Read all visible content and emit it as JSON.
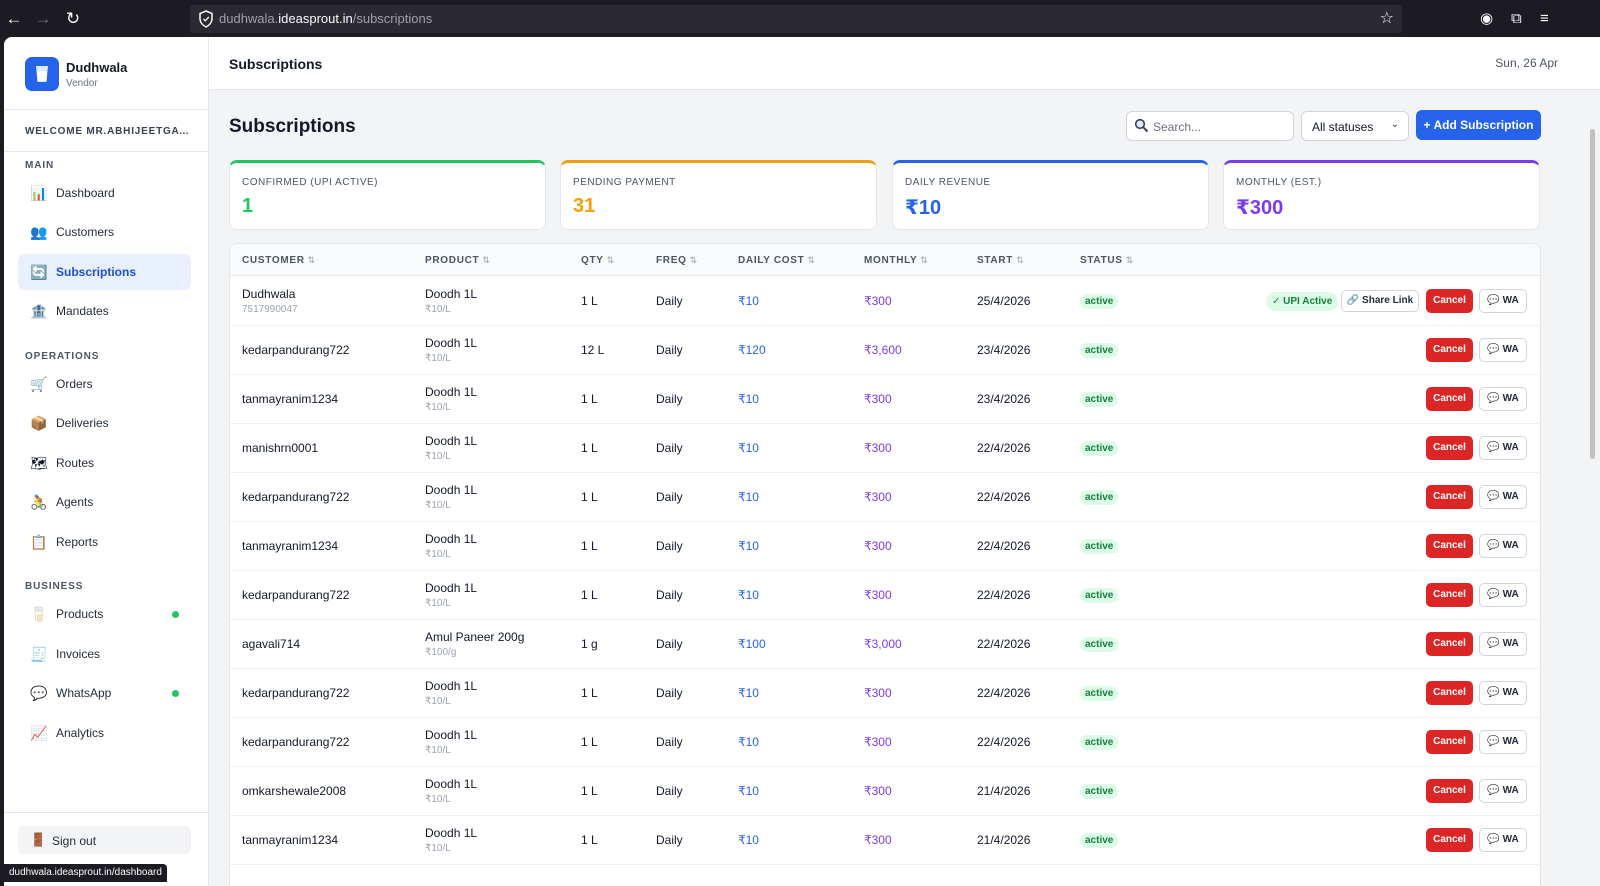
{
  "browser": {
    "url_host": "dudhwala.",
    "url_domain": "ideasprout.in",
    "url_path": "/subscriptions",
    "status_url": "dudhwala.ideasprout.in/dashboard"
  },
  "sidebar": {
    "brand": "Dudhwala",
    "role": "Vendor",
    "welcome": "WELCOME MR.ABHIJEETGAVANDE",
    "sections": {
      "main": "MAIN",
      "operations": "OPERATIONS",
      "business": "BUSINESS"
    },
    "items": {
      "dashboard": "Dashboard",
      "customers": "Customers",
      "subscriptions": "Subscriptions",
      "mandates": "Mandates",
      "orders": "Orders",
      "deliveries": "Deliveries",
      "routes": "Routes",
      "agents": "Agents",
      "reports": "Reports",
      "products": "Products",
      "invoices": "Invoices",
      "whatsapp": "WhatsApp",
      "analytics": "Analytics"
    },
    "signout": "Sign out"
  },
  "topbar": {
    "title": "Subscriptions",
    "date": "Sun, 26 Apr"
  },
  "page": {
    "title": "Subscriptions",
    "search_placeholder": "Search...",
    "status_filter": "All statuses",
    "add_button": "+ Add Subscription"
  },
  "stats": [
    {
      "label": "CONFIRMED (UPI ACTIVE)",
      "value": "1",
      "color": "#22c55e"
    },
    {
      "label": "PENDING PAYMENT",
      "value": "31",
      "color": "#f59e0b"
    },
    {
      "label": "DAILY REVENUE",
      "value": "₹10",
      "color": "#2563eb"
    },
    {
      "label": "MONTHLY (EST.)",
      "value": "₹300",
      "color": "#7c3aed"
    }
  ],
  "table": {
    "headers": {
      "customer": "CUSTOMER",
      "product": "PRODUCT",
      "qty": "QTY",
      "freq": "FREQ",
      "daily_cost": "DAILY COST",
      "monthly": "MONTHLY",
      "start": "START",
      "status": "STATUS"
    },
    "actions": {
      "upi_active": "✓ UPI Active",
      "share_link": "Share Link",
      "cancel": "Cancel",
      "wa": "WA"
    },
    "rows": [
      {
        "customer": "Dudhwala",
        "phone": "7517990047",
        "product": "Doodh 1L",
        "unit_price": "₹10/L",
        "qty": "1 L",
        "freq": "Daily",
        "daily_cost": "₹10",
        "monthly": "₹300",
        "start": "25/4/2026",
        "status": "active",
        "upi": true
      },
      {
        "customer": "kedarpandurang722",
        "phone": "",
        "product": "Doodh 1L",
        "unit_price": "₹10/L",
        "qty": "12 L",
        "freq": "Daily",
        "daily_cost": "₹120",
        "monthly": "₹3,600",
        "start": "23/4/2026",
        "status": "active",
        "upi": false
      },
      {
        "customer": "tanmayranim1234",
        "phone": "",
        "product": "Doodh 1L",
        "unit_price": "₹10/L",
        "qty": "1 L",
        "freq": "Daily",
        "daily_cost": "₹10",
        "monthly": "₹300",
        "start": "23/4/2026",
        "status": "active",
        "upi": false
      },
      {
        "customer": "manishrn0001",
        "phone": "",
        "product": "Doodh 1L",
        "unit_price": "₹10/L",
        "qty": "1 L",
        "freq": "Daily",
        "daily_cost": "₹10",
        "monthly": "₹300",
        "start": "22/4/2026",
        "status": "active",
        "upi": false
      },
      {
        "customer": "kedarpandurang722",
        "phone": "",
        "product": "Doodh 1L",
        "unit_price": "₹10/L",
        "qty": "1 L",
        "freq": "Daily",
        "daily_cost": "₹10",
        "monthly": "₹300",
        "start": "22/4/2026",
        "status": "active",
        "upi": false
      },
      {
        "customer": "tanmayranim1234",
        "phone": "",
        "product": "Doodh 1L",
        "unit_price": "₹10/L",
        "qty": "1 L",
        "freq": "Daily",
        "daily_cost": "₹10",
        "monthly": "₹300",
        "start": "22/4/2026",
        "status": "active",
        "upi": false
      },
      {
        "customer": "kedarpandurang722",
        "phone": "",
        "product": "Doodh 1L",
        "unit_price": "₹10/L",
        "qty": "1 L",
        "freq": "Daily",
        "daily_cost": "₹10",
        "monthly": "₹300",
        "start": "22/4/2026",
        "status": "active",
        "upi": false
      },
      {
        "customer": "agavali714",
        "phone": "",
        "product": "Amul Paneer 200g",
        "unit_price": "₹100/g",
        "qty": "1 g",
        "freq": "Daily",
        "daily_cost": "₹100",
        "monthly": "₹3,000",
        "start": "22/4/2026",
        "status": "active",
        "upi": false
      },
      {
        "customer": "kedarpandurang722",
        "phone": "",
        "product": "Doodh 1L",
        "unit_price": "₹10/L",
        "qty": "1 L",
        "freq": "Daily",
        "daily_cost": "₹10",
        "monthly": "₹300",
        "start": "22/4/2026",
        "status": "active",
        "upi": false
      },
      {
        "customer": "kedarpandurang722",
        "phone": "",
        "product": "Doodh 1L",
        "unit_price": "₹10/L",
        "qty": "1 L",
        "freq": "Daily",
        "daily_cost": "₹10",
        "monthly": "₹300",
        "start": "22/4/2026",
        "status": "active",
        "upi": false
      },
      {
        "customer": "omkarshewale2008",
        "phone": "",
        "product": "Doodh 1L",
        "unit_price": "₹10/L",
        "qty": "1 L",
        "freq": "Daily",
        "daily_cost": "₹10",
        "monthly": "₹300",
        "start": "21/4/2026",
        "status": "active",
        "upi": false
      },
      {
        "customer": "tanmayranim1234",
        "phone": "",
        "product": "Doodh 1L",
        "unit_price": "₹10/L",
        "qty": "1 L",
        "freq": "Daily",
        "daily_cost": "₹10",
        "monthly": "₹300",
        "start": "21/4/2026",
        "status": "active",
        "upi": false
      }
    ]
  }
}
